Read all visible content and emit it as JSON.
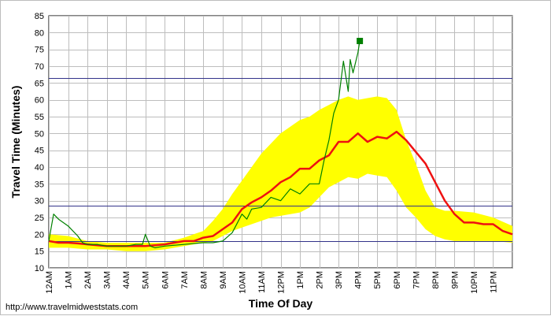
{
  "source_url": "http://www.travelmidweststats.com",
  "colors": {
    "band": "#ffff00",
    "typical": "#ee1111",
    "current": "#008000",
    "reference_lines": "#33338a",
    "grid": "#bdbdbd",
    "current_marker": "#008000"
  },
  "chart_data": {
    "type": "line",
    "title": "",
    "xlabel": "Time Of Day",
    "ylabel": "Travel Time (Minutes)",
    "xlim": [
      0,
      24
    ],
    "ylim": [
      10,
      85
    ],
    "yticks": [
      "10",
      "15",
      "20",
      "25",
      "30",
      "35",
      "40",
      "45",
      "50",
      "55",
      "60",
      "65",
      "70",
      "75",
      "80",
      "85"
    ],
    "xticks": [
      "12AM",
      "1AM",
      "2AM",
      "3AM",
      "4AM",
      "5AM",
      "6AM",
      "7AM",
      "8AM",
      "9AM",
      "10AM",
      "11AM",
      "12PM",
      "1PM",
      "2PM",
      "3PM",
      "4PM",
      "5PM",
      "6PM",
      "7PM",
      "8PM",
      "9PM",
      "10PM",
      "11PM"
    ],
    "grid": true,
    "reference_lines": [
      18,
      28.5,
      66.5
    ],
    "band": {
      "x": [
        0,
        1,
        2,
        3,
        4,
        5,
        6,
        7,
        7.5,
        8,
        8.5,
        9,
        9.5,
        10,
        10.5,
        11,
        11.5,
        12,
        12.5,
        13,
        13.5,
        14,
        14.5,
        15,
        15.5,
        16,
        16.5,
        17,
        17.5,
        18,
        18.5,
        19,
        19.5,
        20,
        20.5,
        21,
        22,
        23,
        24
      ],
      "lower": [
        16,
        16,
        15.5,
        15.5,
        15,
        15,
        15.5,
        16.5,
        17,
        17.5,
        18,
        19.5,
        21,
        22,
        23,
        24,
        25,
        25.5,
        26,
        26.5,
        28,
        31,
        34,
        35.5,
        37,
        36.5,
        38,
        37.5,
        37,
        33,
        28,
        25,
        21.5,
        19.5,
        18.5,
        18,
        18,
        18,
        17.5
      ],
      "upper": [
        20,
        19.5,
        18,
        17.5,
        17.5,
        17.5,
        17.5,
        19,
        20,
        21,
        24,
        27.5,
        32,
        36,
        40,
        44,
        47,
        50,
        52,
        54,
        55,
        57,
        58.5,
        60,
        61,
        60,
        60.5,
        61,
        60.5,
        57,
        48,
        41,
        33,
        28,
        27,
        27,
        26.5,
        25,
        22.5
      ]
    },
    "series": [
      {
        "name": "",
        "role": "typical",
        "x": [
          0,
          0.5,
          1,
          1.5,
          2,
          3,
          4,
          5,
          6,
          6.5,
          7,
          7.5,
          8,
          8.5,
          9,
          9.5,
          10,
          10.5,
          11,
          11.5,
          12,
          12.5,
          13,
          13.5,
          14,
          14.5,
          15,
          15.5,
          16,
          16.5,
          17,
          17.5,
          18,
          18.5,
          19,
          19.5,
          20,
          20.5,
          21,
          21.5,
          22,
          22.5,
          23,
          23.5,
          24
        ],
        "y": [
          18,
          17.5,
          17.5,
          17.3,
          17,
          16.5,
          16.5,
          16.5,
          17,
          17.5,
          18,
          18,
          19,
          19.5,
          21.5,
          23.5,
          27.5,
          29.5,
          31,
          33,
          35.5,
          37,
          39.5,
          39.5,
          42,
          43.5,
          47.5,
          47.5,
          50,
          47.5,
          49,
          48.5,
          50.5,
          48,
          44.5,
          41,
          35.5,
          30,
          26,
          23.5,
          23.5,
          23,
          23,
          21,
          20
        ]
      },
      {
        "name": "",
        "role": "current",
        "x": [
          0,
          0.25,
          0.5,
          1,
          1.5,
          1.75,
          2,
          2.5,
          3,
          3.5,
          4,
          4.5,
          4.85,
          5,
          5.25,
          5.5,
          6,
          7,
          8,
          8.5,
          9,
          9.5,
          10,
          10.25,
          10.5,
          11,
          11.5,
          12,
          12.5,
          13,
          13.5,
          14,
          14.25,
          14.5,
          14.75,
          15,
          15.25,
          15.5,
          15.6,
          15.75,
          16,
          16.1
        ],
        "y": [
          18,
          26,
          24.5,
          22.5,
          19.5,
          17.5,
          17,
          17,
          16.5,
          16.5,
          16.5,
          17,
          17,
          20,
          16.5,
          16,
          16.5,
          17,
          17.5,
          17.5,
          18,
          20.5,
          26,
          24.5,
          27.5,
          28,
          31,
          30,
          33.5,
          32,
          35,
          35,
          42,
          48,
          56,
          60,
          71.5,
          62.5,
          72,
          68,
          74,
          77.5
        ]
      }
    ],
    "current_marker": {
      "x": 16.1,
      "y": 77.5
    }
  }
}
